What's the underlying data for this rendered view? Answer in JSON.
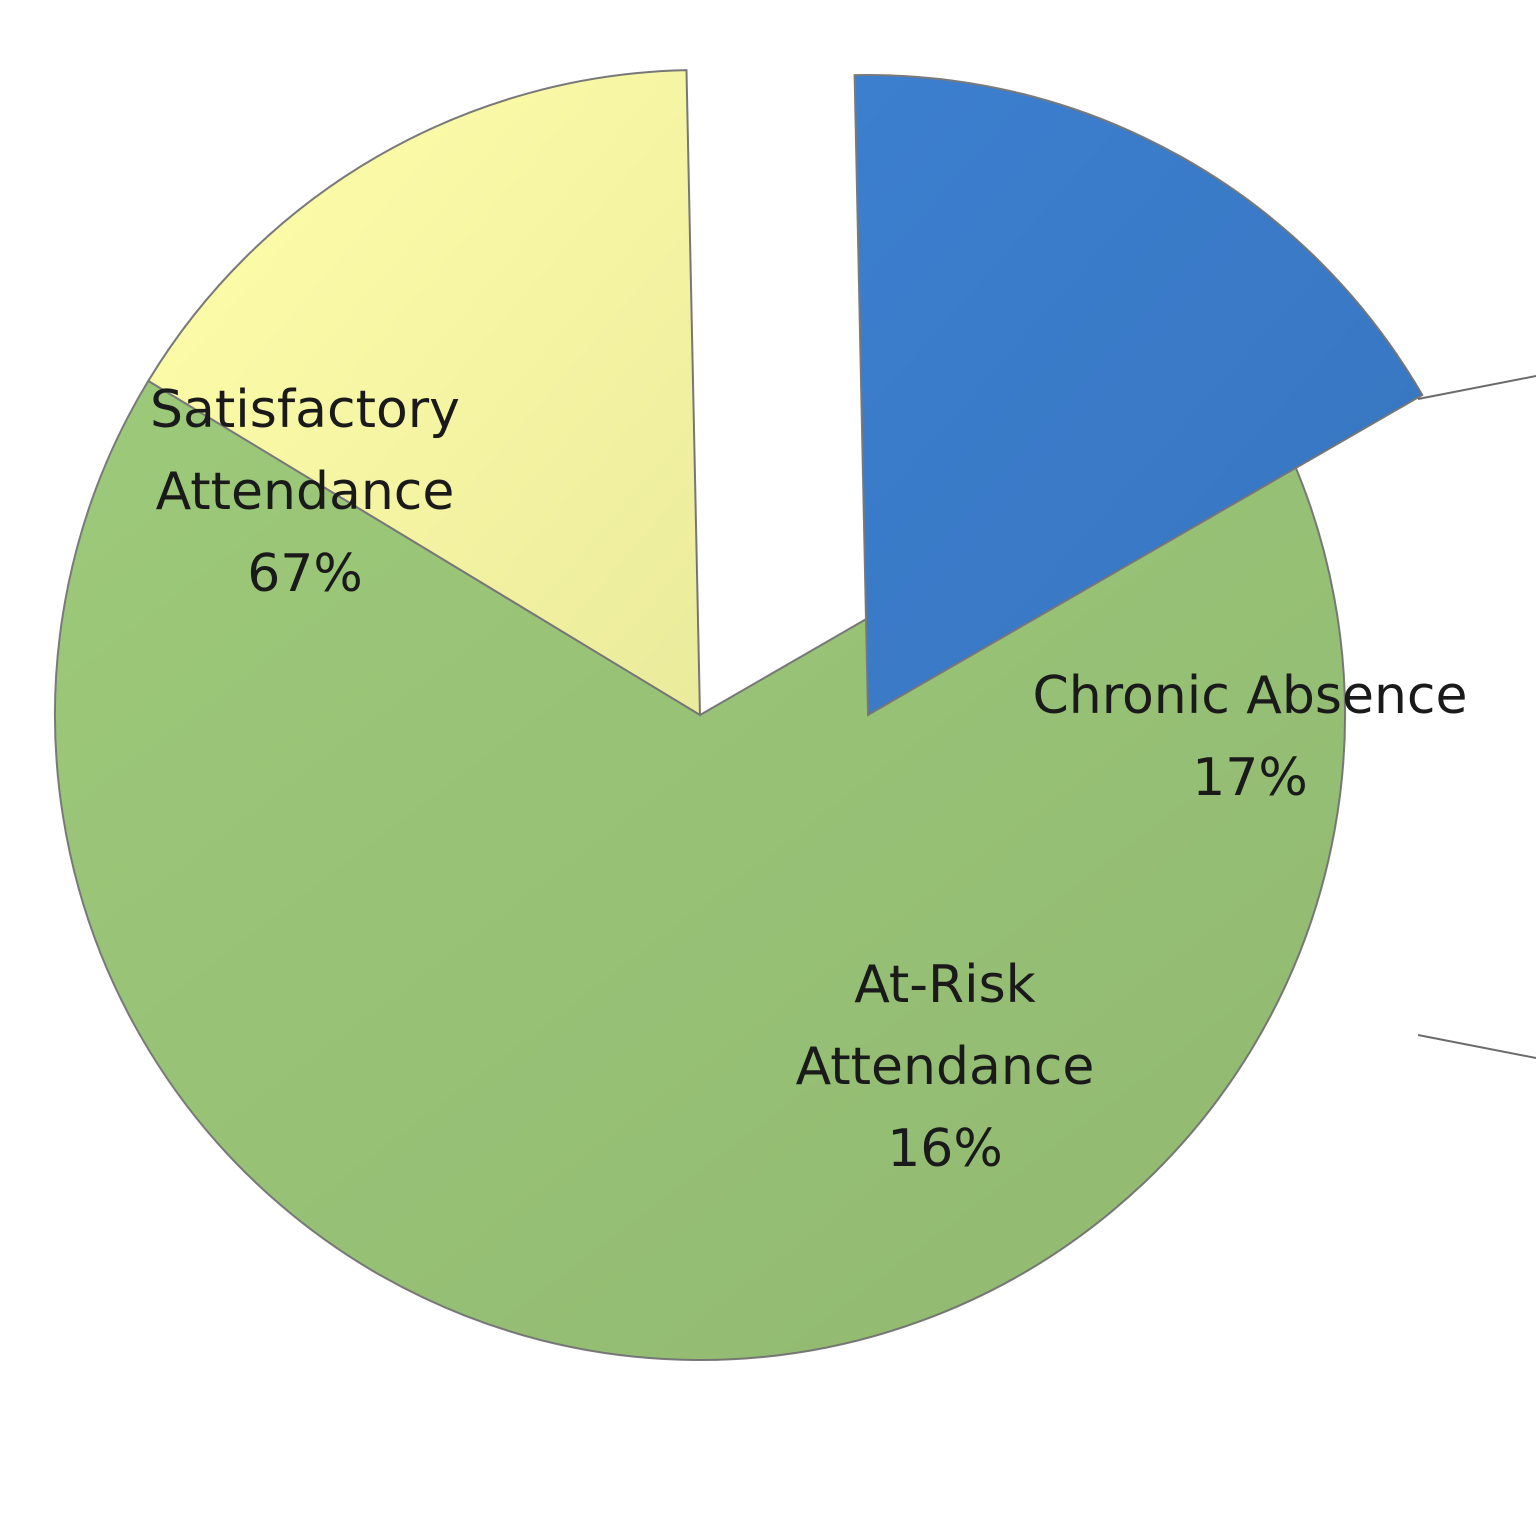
{
  "chart_data": {
    "type": "pie",
    "slices": [
      {
        "label_lines": [
          "Satisfactory",
          "Attendance"
        ],
        "value": 67,
        "value_text": "67%",
        "color": "#9DC97A",
        "exploded": false
      },
      {
        "label_lines": [
          "At-Risk",
          "Attendance"
        ],
        "value": 16,
        "value_text": "16%",
        "color": "#FFFFAA",
        "exploded": false
      },
      {
        "label_lines": [
          "Chronic Absence"
        ],
        "value": 17,
        "value_text": "17%",
        "color": "#3C7FCF",
        "exploded": true
      }
    ],
    "connector_color": "#6b6b6b",
    "grid": false,
    "legend": "none"
  }
}
